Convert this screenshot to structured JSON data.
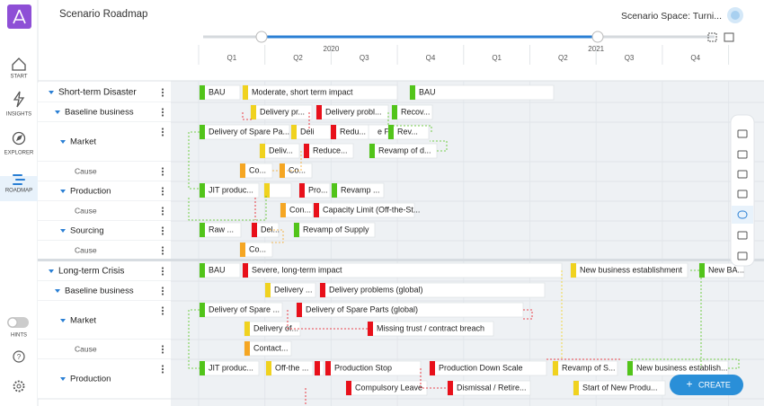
{
  "header": {
    "title": "Scenario Roadmap",
    "scenario_space": "Scenario Space: Turni..."
  },
  "sidebar": {
    "items": [
      "START",
      "INSIGHTS",
      "EXPLORER",
      "ROADMAP"
    ],
    "hints": "HINTS"
  },
  "timeline": {
    "years": [
      "2020",
      "2021"
    ],
    "quarters": [
      "Q1",
      "Q2",
      "Q3",
      "Q4",
      "Q1",
      "Q2",
      "Q3",
      "Q4"
    ]
  },
  "rows": [
    {
      "label": "Short-term Disaster",
      "level": 0
    },
    {
      "label": "Baseline business",
      "level": 1
    },
    {
      "label": "Market",
      "level": 2
    },
    {
      "label": "Cause",
      "level": 3
    },
    {
      "label": "Production",
      "level": 2
    },
    {
      "label": "Cause",
      "level": 3
    },
    {
      "label": "Sourcing",
      "level": 2
    },
    {
      "label": "Cause",
      "level": 3
    },
    {
      "label": "Long-term Crisis",
      "level": 0
    },
    {
      "label": "Baseline business",
      "level": 1
    },
    {
      "label": "Market",
      "level": 2
    },
    {
      "label": "Cause",
      "level": 3
    },
    {
      "label": "Production",
      "level": 2
    }
  ],
  "cards": [
    {
      "text": "BAU",
      "color": "#52c41a"
    },
    {
      "text": "Moderate, short term impact",
      "color": "#f0d21f"
    },
    {
      "text": "BAU",
      "color": "#52c41a"
    },
    {
      "text": "Delivery pr...",
      "color": "#f0d21f"
    },
    {
      "text": "Delivery probl...",
      "color": "#e8101a"
    },
    {
      "text": "Recov...",
      "color": "#52c41a"
    },
    {
      "text": "Delivery of Spare Pa...",
      "color": "#52c41a"
    },
    {
      "text": "Deli",
      "color": "#f0d21f"
    },
    {
      "text": "Redu...",
      "color": "#e8101a"
    },
    {
      "text": "e Pa"
    },
    {
      "text": "Rev...",
      "color": "#52c41a"
    },
    {
      "text": "Deliv...",
      "color": "#f0d21f"
    },
    {
      "text": "Reduce...",
      "color": "#e8101a"
    },
    {
      "text": "Revamp of d...",
      "color": "#52c41a"
    },
    {
      "text": "Co...",
      "color": "#f5a623"
    },
    {
      "text": "Co...",
      "color": "#f5a623"
    },
    {
      "text": "JIT produc...",
      "color": "#52c41a"
    },
    {
      "color": "#f0d21f"
    },
    {
      "text": "Pro...",
      "color": "#e8101a"
    },
    {
      "text": "Revamp ...",
      "color": "#52c41a"
    },
    {
      "text": "Con...",
      "color": "#f5a623"
    },
    {
      "text": "Capacity Limit (Off-the-St...",
      "color": "#e8101a"
    },
    {
      "text": "Raw ...",
      "color": "#52c41a"
    },
    {
      "text": "Del...",
      "color": "#e8101a"
    },
    {
      "text": "Revamp of Supply",
      "color": "#52c41a"
    },
    {
      "text": "Co...",
      "color": "#f5a623"
    },
    {
      "text": "BAU",
      "color": "#52c41a"
    },
    {
      "text": "Severe, long-term impact",
      "color": "#e8101a"
    },
    {
      "text": "New business establishment",
      "color": "#f0d21f"
    },
    {
      "text": "New BA...",
      "color": "#52c41a"
    },
    {
      "text": "Delivery ...",
      "color": "#f0d21f"
    },
    {
      "text": "Delivery problems (global)",
      "color": "#e8101a"
    },
    {
      "text": "Delivery of Spare ...",
      "color": "#52c41a"
    },
    {
      "text": "Delivery of Spare Parts (global)",
      "color": "#e8101a"
    },
    {
      "text": "Delivery of...",
      "color": "#f0d21f"
    },
    {
      "text": "Missing trust / contract breach",
      "color": "#e8101a"
    },
    {
      "text": "Contact...",
      "color": "#f5a623"
    },
    {
      "text": "JIT produc...",
      "color": "#52c41a"
    },
    {
      "text": "Off-the ...",
      "color": "#f0d21f"
    },
    {
      "color": "#e8101a"
    },
    {
      "text": "Production Stop",
      "color": "#e8101a"
    },
    {
      "text": "Production Down Scale",
      "color": "#e8101a"
    },
    {
      "text": "Revamp of S...",
      "color": "#f0d21f"
    },
    {
      "text": "New business establish...",
      "color": "#52c41a"
    },
    {
      "text": "Compulsory Leave",
      "color": "#e8101a"
    },
    {
      "text": "Dismissal / Retire...",
      "color": "#e8101a"
    },
    {
      "text": "Start of New Produ...",
      "color": "#f0d21f"
    }
  ],
  "button": "CREATE"
}
